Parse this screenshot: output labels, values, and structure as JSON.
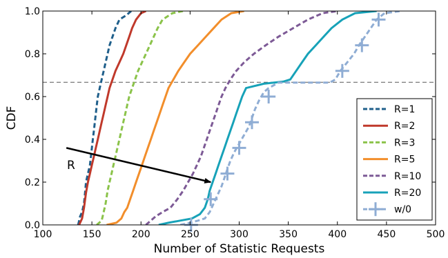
{
  "chart_data": {
    "type": "line",
    "xlabel": "Number of Statistic Requests",
    "ylabel": "CDF",
    "xlim": [
      100,
      500
    ],
    "ylim": [
      0.0,
      1.0
    ],
    "x_ticks": [
      "100",
      "150",
      "200",
      "250",
      "300",
      "350",
      "400",
      "450",
      "500"
    ],
    "y_ticks": [
      "0.0",
      "0.2",
      "0.4",
      "0.6",
      "0.8",
      "1.0"
    ],
    "grid": false,
    "legend_position": "lower-right",
    "reference_line": {
      "y": 0.667,
      "style": "dashed",
      "color": "#555555"
    },
    "annotation": {
      "text": "R",
      "arrow_from": [
        124,
        0.36
      ],
      "arrow_to": [
        271,
        0.2
      ]
    },
    "series": [
      {
        "name": "R=1",
        "color": "#1f5f8b",
        "dash": "dashed",
        "points": [
          [
            136,
            0
          ],
          [
            138,
            0.04
          ],
          [
            140,
            0.06
          ],
          [
            142,
            0.1
          ],
          [
            143,
            0.15
          ],
          [
            144,
            0.2
          ],
          [
            146,
            0.24
          ],
          [
            148,
            0.28
          ],
          [
            149,
            0.32
          ],
          [
            150,
            0.36
          ],
          [
            151,
            0.4
          ],
          [
            152,
            0.44
          ],
          [
            153,
            0.48
          ],
          [
            154,
            0.52
          ],
          [
            155,
            0.56
          ],
          [
            156,
            0.6
          ],
          [
            158,
            0.64
          ],
          [
            160,
            0.68
          ],
          [
            162,
            0.72
          ],
          [
            164,
            0.76
          ],
          [
            166,
            0.8
          ],
          [
            168,
            0.84
          ],
          [
            171,
            0.88
          ],
          [
            174,
            0.92
          ],
          [
            178,
            0.96
          ],
          [
            185,
            0.98
          ],
          [
            190,
            1.0
          ]
        ]
      },
      {
        "name": "R=2",
        "color": "#c0392b",
        "dash": "solid",
        "points": [
          [
            137,
            0
          ],
          [
            140,
            0.03
          ],
          [
            142,
            0.08
          ],
          [
            144,
            0.15
          ],
          [
            146,
            0.2
          ],
          [
            148,
            0.24
          ],
          [
            150,
            0.28
          ],
          [
            152,
            0.32
          ],
          [
            154,
            0.36
          ],
          [
            156,
            0.4
          ],
          [
            158,
            0.44
          ],
          [
            160,
            0.48
          ],
          [
            162,
            0.52
          ],
          [
            164,
            0.56
          ],
          [
            166,
            0.6
          ],
          [
            168,
            0.64
          ],
          [
            171,
            0.68
          ],
          [
            174,
            0.72
          ],
          [
            178,
            0.76
          ],
          [
            182,
            0.8
          ],
          [
            185,
            0.84
          ],
          [
            188,
            0.88
          ],
          [
            191,
            0.92
          ],
          [
            195,
            0.96
          ],
          [
            200,
            0.99
          ],
          [
            205,
            1.0
          ]
        ]
      },
      {
        "name": "R=3",
        "color": "#8bc34a",
        "dash": "dashed",
        "points": [
          [
            155,
            0
          ],
          [
            160,
            0.02
          ],
          [
            162,
            0.06
          ],
          [
            164,
            0.1
          ],
          [
            166,
            0.16
          ],
          [
            168,
            0.2
          ],
          [
            170,
            0.24
          ],
          [
            172,
            0.28
          ],
          [
            174,
            0.32
          ],
          [
            176,
            0.36
          ],
          [
            178,
            0.4
          ],
          [
            180,
            0.44
          ],
          [
            182,
            0.48
          ],
          [
            184,
            0.52
          ],
          [
            186,
            0.56
          ],
          [
            188,
            0.6
          ],
          [
            191,
            0.64
          ],
          [
            194,
            0.68
          ],
          [
            197,
            0.72
          ],
          [
            201,
            0.76
          ],
          [
            205,
            0.8
          ],
          [
            209,
            0.84
          ],
          [
            213,
            0.88
          ],
          [
            217,
            0.92
          ],
          [
            222,
            0.96
          ],
          [
            232,
            0.99
          ],
          [
            243,
            1.0
          ]
        ]
      },
      {
        "name": "R=5",
        "color": "#f28e2b",
        "dash": "solid",
        "points": [
          [
            165,
            0
          ],
          [
            175,
            0.01
          ],
          [
            180,
            0.03
          ],
          [
            183,
            0.06
          ],
          [
            186,
            0.08
          ],
          [
            189,
            0.12
          ],
          [
            192,
            0.16
          ],
          [
            195,
            0.2
          ],
          [
            198,
            0.24
          ],
          [
            201,
            0.28
          ],
          [
            204,
            0.32
          ],
          [
            207,
            0.36
          ],
          [
            210,
            0.4
          ],
          [
            213,
            0.44
          ],
          [
            216,
            0.48
          ],
          [
            219,
            0.52
          ],
          [
            222,
            0.56
          ],
          [
            225,
            0.6
          ],
          [
            228,
            0.64
          ],
          [
            233,
            0.68
          ],
          [
            238,
            0.72
          ],
          [
            244,
            0.76
          ],
          [
            250,
            0.8
          ],
          [
            258,
            0.84
          ],
          [
            266,
            0.88
          ],
          [
            274,
            0.92
          ],
          [
            282,
            0.96
          ],
          [
            292,
            0.99
          ],
          [
            305,
            1.0
          ]
        ]
      },
      {
        "name": "R=10",
        "color": "#7d5a96",
        "dash": "dashed",
        "points": [
          [
            205,
            0
          ],
          [
            210,
            0.02
          ],
          [
            215,
            0.04
          ],
          [
            222,
            0.06
          ],
          [
            230,
            0.08
          ],
          [
            237,
            0.12
          ],
          [
            243,
            0.16
          ],
          [
            248,
            0.2
          ],
          [
            253,
            0.24
          ],
          [
            257,
            0.28
          ],
          [
            261,
            0.32
          ],
          [
            264,
            0.36
          ],
          [
            267,
            0.4
          ],
          [
            270,
            0.44
          ],
          [
            273,
            0.48
          ],
          [
            276,
            0.52
          ],
          [
            279,
            0.56
          ],
          [
            282,
            0.6
          ],
          [
            286,
            0.64
          ],
          [
            291,
            0.68
          ],
          [
            297,
            0.72
          ],
          [
            305,
            0.76
          ],
          [
            315,
            0.8
          ],
          [
            327,
            0.84
          ],
          [
            340,
            0.88
          ],
          [
            355,
            0.92
          ],
          [
            370,
            0.96
          ],
          [
            385,
            0.99
          ],
          [
            400,
            1.0
          ]
        ]
      },
      {
        "name": "R=20",
        "color": "#17a2b8",
        "dash": "solid",
        "points": [
          [
            218,
            0
          ],
          [
            228,
            0.01
          ],
          [
            240,
            0.02
          ],
          [
            252,
            0.03
          ],
          [
            260,
            0.05
          ],
          [
            265,
            0.08
          ],
          [
            268,
            0.12
          ],
          [
            270,
            0.16
          ],
          [
            273,
            0.2
          ],
          [
            276,
            0.24
          ],
          [
            279,
            0.28
          ],
          [
            282,
            0.32
          ],
          [
            285,
            0.36
          ],
          [
            288,
            0.4
          ],
          [
            291,
            0.44
          ],
          [
            294,
            0.48
          ],
          [
            297,
            0.52
          ],
          [
            300,
            0.56
          ],
          [
            303,
            0.6
          ],
          [
            307,
            0.64
          ],
          [
            325,
            0.66
          ],
          [
            345,
            0.67
          ],
          [
            352,
            0.68
          ],
          [
            358,
            0.72
          ],
          [
            364,
            0.76
          ],
          [
            370,
            0.8
          ],
          [
            378,
            0.84
          ],
          [
            386,
            0.88
          ],
          [
            394,
            0.92
          ],
          [
            405,
            0.96
          ],
          [
            418,
            0.99
          ],
          [
            440,
            1.0
          ]
        ]
      },
      {
        "name": "w/0",
        "color": "#8fadd4",
        "dash": "dashed",
        "marker": "plus",
        "points": [
          [
            240,
            0
          ],
          [
            250,
            0.01
          ],
          [
            258,
            0.02
          ],
          [
            265,
            0.03
          ],
          [
            270,
            0.06
          ],
          [
            274,
            0.1
          ],
          [
            278,
            0.14
          ],
          [
            282,
            0.18
          ],
          [
            285,
            0.22
          ],
          [
            288,
            0.26
          ],
          [
            291,
            0.3
          ],
          [
            295,
            0.34
          ],
          [
            300,
            0.38
          ],
          [
            305,
            0.42
          ],
          [
            310,
            0.46
          ],
          [
            313,
            0.5
          ],
          [
            316,
            0.54
          ],
          [
            320,
            0.58
          ],
          [
            325,
            0.62
          ],
          [
            330,
            0.64
          ],
          [
            340,
            0.665
          ],
          [
            392,
            0.665
          ],
          [
            398,
            0.68
          ],
          [
            403,
            0.72
          ],
          [
            410,
            0.76
          ],
          [
            417,
            0.8
          ],
          [
            422,
            0.84
          ],
          [
            428,
            0.88
          ],
          [
            434,
            0.92
          ],
          [
            440,
            0.96
          ],
          [
            448,
            0.99
          ],
          [
            465,
            1.0
          ]
        ],
        "marker_points": [
          [
            251,
            0
          ],
          [
            271,
            0.12
          ],
          [
            288,
            0.24
          ],
          [
            300,
            0.36
          ],
          [
            313,
            0.48
          ],
          [
            330,
            0.6
          ],
          [
            405,
            0.72
          ],
          [
            425,
            0.84
          ],
          [
            442,
            0.96
          ]
        ]
      }
    ]
  }
}
